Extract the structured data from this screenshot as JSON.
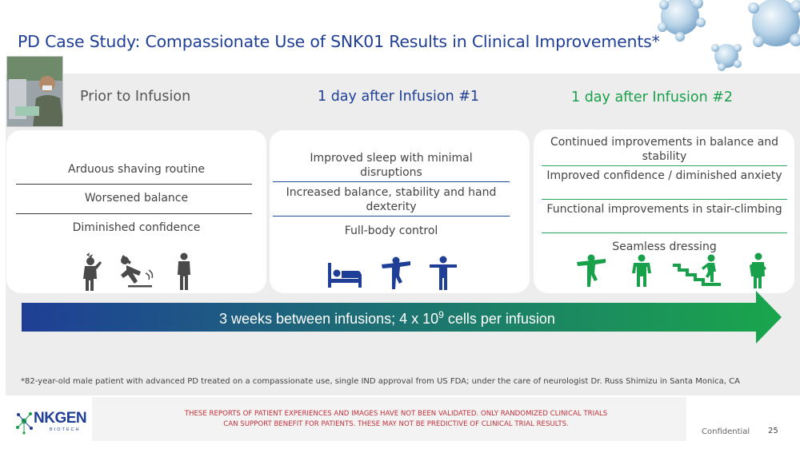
{
  "title": "PD Case Study: Compassionate Use of SNK01 Results in Clinical Improvements*",
  "columns": [
    {
      "heading": "Prior to Infusion",
      "items": [
        "Arduous shaving routine",
        "Worsened balance",
        "Diminished confidence"
      ],
      "icons": [
        "headache-person-icon",
        "slipping-person-icon",
        "standing-person-icon"
      ]
    },
    {
      "heading": "1 day after Infusion #1",
      "items": [
        "Improved sleep with minimal disruptions",
        "Increased balance, stability and hand dexterity",
        "Full-body control"
      ],
      "icons": [
        "sleeping-in-bed-icon",
        "balancing-person-icon",
        "arms-out-person-icon"
      ]
    },
    {
      "heading": "1 day after Infusion #2",
      "items": [
        "Continued improvements in balance and stability",
        "Improved confidence / diminished anxiety",
        "Functional improvements in stair-climbing",
        "Seamless dressing"
      ],
      "icons": [
        "balancing-person-icon",
        "confident-person-icon",
        "stair-climbing-icon",
        "dressing-person-icon"
      ]
    }
  ],
  "arrow": {
    "text_main": "3 weeks between infusions; 4 x 10",
    "text_sup": "9",
    "text_tail": " cells per infusion"
  },
  "footnote": "*82-year-old male patient with advanced PD treated on a compassionate use, single IND approval from US FDA; under the care of neurologist Dr. Russ Shimizu in Santa Monica, CA",
  "disclaimer": {
    "line1": "THESE REPORTS OF PATIENT EXPERIENCES AND IMAGES HAVE NOT BEEN VALIDATED. ONLY RANDOMIZED CLINICAL TRIALS",
    "line2": "CAN SUPPORT BENEFIT FOR PATIENTS. THESE MAY NOT BE PREDICTIVE OF CLINICAL TRIAL RESULTS."
  },
  "logo": {
    "name": "NKGEN",
    "sub": "BIOTECH"
  },
  "confidential": "Confidential",
  "page_number": "25",
  "colors": {
    "title_blue": "#1f3f96",
    "green": "#19a04a",
    "dark_icon": "#4a4a4a",
    "arrow_start": "#1f3f96",
    "arrow_end": "#1aa64c"
  }
}
